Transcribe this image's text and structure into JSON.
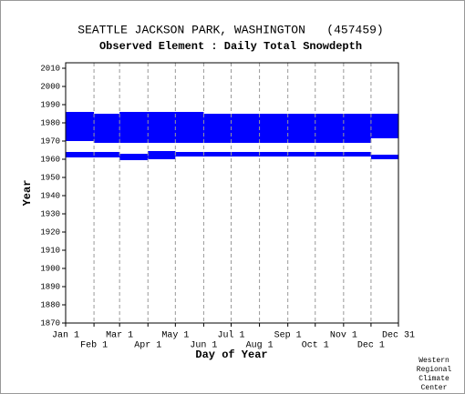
{
  "chart_data": {
    "type": "range",
    "title": "SEATTLE JACKSON PARK, WASHINGTON   (457459)",
    "subtitle": "Observed Element : Daily Total Snowdepth",
    "x_label": "Day of Year",
    "y_label": "Year",
    "credit": [
      "Western",
      "Regional",
      "Climate",
      "Center"
    ],
    "xlim": [
      1,
      365
    ],
    "ylim": [
      1870,
      2013
    ],
    "xticks": [
      {
        "value": 1,
        "label": "Jan 1"
      },
      {
        "value": 32,
        "label": "Feb 1"
      },
      {
        "value": 60,
        "label": "Mar 1"
      },
      {
        "value": 91,
        "label": "Apr 1"
      },
      {
        "value": 121,
        "label": "May 1"
      },
      {
        "value": 152,
        "label": "Jun 1"
      },
      {
        "value": 182,
        "label": "Jul 1"
      },
      {
        "value": 213,
        "label": "Aug 1"
      },
      {
        "value": 244,
        "label": "Sep 1"
      },
      {
        "value": 274,
        "label": "Oct 1"
      },
      {
        "value": 305,
        "label": "Nov 1"
      },
      {
        "value": 335,
        "label": "Dec 1"
      },
      {
        "value": 365,
        "label": "Dec 31"
      }
    ],
    "yticks": [
      1870,
      1880,
      1890,
      1900,
      1910,
      1920,
      1930,
      1940,
      1950,
      1960,
      1970,
      1980,
      1990,
      2000,
      2010
    ],
    "grid": true,
    "color": "#0000ff",
    "ranges": [
      {
        "x": [
          1,
          32
        ],
        "y": [
          1970,
          1986
        ]
      },
      {
        "x": [
          32,
          60
        ],
        "y": [
          1969,
          1985
        ]
      },
      {
        "x": [
          60,
          152
        ],
        "y": [
          1969,
          1986
        ]
      },
      {
        "x": [
          152,
          335
        ],
        "y": [
          1969,
          1985
        ]
      },
      {
        "x": [
          335,
          365
        ],
        "y": [
          1971.5,
          1985
        ]
      },
      {
        "x": [
          1,
          60
        ],
        "y": [
          1961,
          1964
        ]
      },
      {
        "x": [
          60,
          91
        ],
        "y": [
          1959.5,
          1963
        ]
      },
      {
        "x": [
          91,
          121
        ],
        "y": [
          1960,
          1964.5
        ]
      },
      {
        "x": [
          121,
          335
        ],
        "y": [
          1961.5,
          1964
        ]
      },
      {
        "x": [
          335,
          365
        ],
        "y": [
          1960,
          1962.5
        ]
      }
    ]
  }
}
